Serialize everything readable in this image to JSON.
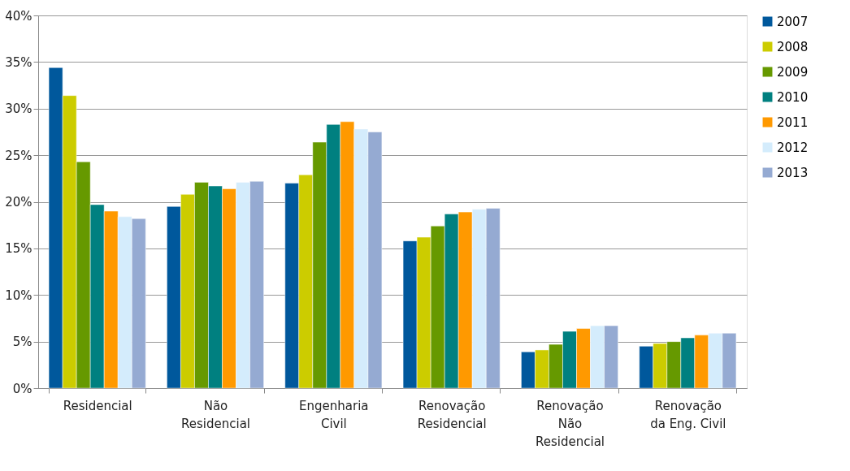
{
  "chart_data": {
    "type": "bar",
    "categories": [
      "Residencial",
      "Não\nResidencial",
      "Engenharia\nCivil",
      "Renovação\nResidencial",
      "Renovação\nNão\nResidencial",
      "Renovação\nda Eng. Civil"
    ],
    "series": [
      {
        "name": "2007",
        "color": "#00589c",
        "values": [
          34.4,
          19.5,
          22.0,
          15.8,
          3.9,
          4.5
        ]
      },
      {
        "name": "2008",
        "color": "#cccc00",
        "values": [
          31.4,
          20.8,
          22.9,
          16.2,
          4.1,
          4.8
        ]
      },
      {
        "name": "2009",
        "color": "#669900",
        "values": [
          24.3,
          22.1,
          26.4,
          17.4,
          4.7,
          5.0
        ]
      },
      {
        "name": "2010",
        "color": "#008080",
        "values": [
          19.7,
          21.7,
          28.3,
          18.7,
          6.1,
          5.4
        ]
      },
      {
        "name": "2011",
        "color": "#ff9900",
        "values": [
          19.0,
          21.4,
          28.6,
          18.9,
          6.4,
          5.7
        ]
      },
      {
        "name": "2012",
        "color": "#d4ecfc",
        "values": [
          18.4,
          22.1,
          27.8,
          19.2,
          6.7,
          5.9
        ]
      },
      {
        "name": "2013",
        "color": "#95aad2",
        "values": [
          18.2,
          22.2,
          27.5,
          19.3,
          6.7,
          5.9
        ]
      }
    ],
    "ylim": [
      0,
      40
    ],
    "yticks": [
      {
        "value": 0,
        "label": "0%"
      },
      {
        "value": 5,
        "label": "5%"
      },
      {
        "value": 10,
        "label": "10%"
      },
      {
        "value": 15,
        "label": "15%"
      },
      {
        "value": 20,
        "label": "20%"
      },
      {
        "value": 25,
        "label": "25%"
      },
      {
        "value": 30,
        "label": "30%"
      },
      {
        "value": 35,
        "label": "35%"
      },
      {
        "value": 40,
        "label": "40%"
      }
    ],
    "grid": "y",
    "legend": "right"
  }
}
